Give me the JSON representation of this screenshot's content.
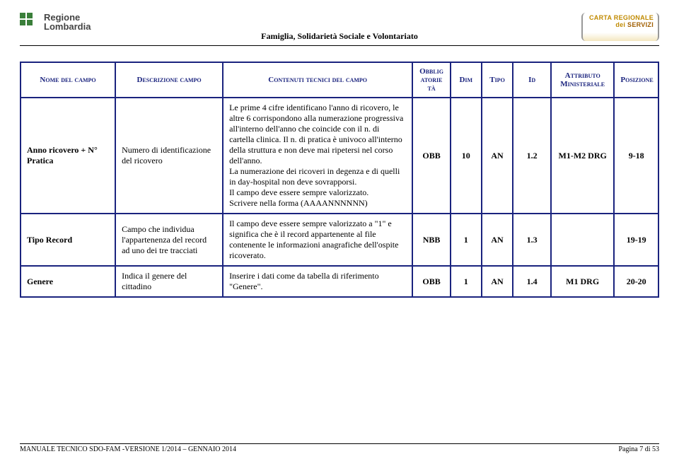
{
  "header": {
    "logo_line1": "Regione",
    "logo_line2": "Lombardia",
    "center_title": "Famiglia, Solidarietà Sociale e Volontariato",
    "card_line1": "CARTA REGIONALE",
    "card_line2": "dei",
    "card_line3": "SERVIZI"
  },
  "table": {
    "columns": [
      {
        "key": "nome",
        "label": "Nome del campo",
        "class": "col-nome"
      },
      {
        "key": "desc",
        "label": "Descrizione campo",
        "class": "col-desc"
      },
      {
        "key": "cont",
        "label": "Contenuti tecnici del campo",
        "class": "col-contenuti"
      },
      {
        "key": "obb",
        "label": "Obblig atorie tà",
        "class": "col-obb"
      },
      {
        "key": "dim",
        "label": "Dim",
        "class": "col-dim"
      },
      {
        "key": "tipo",
        "label": "Tipo",
        "class": "col-tipo"
      },
      {
        "key": "id",
        "label": "Id",
        "class": "col-id"
      },
      {
        "key": "attr",
        "label": "Attributo Ministeriale",
        "class": "col-attr"
      },
      {
        "key": "pos",
        "label": "Posizione",
        "class": "col-pos"
      }
    ],
    "rows": [
      {
        "nome": "Anno ricovero + N° Pratica",
        "desc": "Numero di identificazione del ricovero",
        "cont": "Le prime 4 cifre identificano l'anno di ricovero, le altre 6 corrispondono alla numerazione progressiva all'interno dell'anno che coincide con il n. di cartella clinica. Il n. di pratica è univoco all'interno della struttura e non deve mai ripetersi nel corso dell'anno.\nLa numerazione dei ricoveri in degenza e di quelli in day-hospital non deve sovrapporsi.\nIl campo deve essere sempre valorizzato.\nScrivere nella forma (AAAANNNNNN)",
        "obb": "OBB",
        "dim": "10",
        "tipo": "AN",
        "id": "1.2",
        "attr": "M1-M2 DRG",
        "pos": "9-18"
      },
      {
        "nome": "Tipo Record",
        "desc": "Campo che individua l'appartenenza del record ad uno dei tre tracciati",
        "cont": "Il campo deve essere sempre valorizzato a \"1\" e significa che è il record appartenente al file contenente le informazioni anagrafiche dell'ospite ricoverato.",
        "obb": "NBB",
        "dim": "1",
        "tipo": "AN",
        "id": "1.3",
        "attr": "",
        "pos": "19-19"
      },
      {
        "nome": "Genere",
        "desc": "Indica il  genere del cittadino",
        "cont": "Inserire i dati come da tabella di riferimento \"Genere\".",
        "obb": "OBB",
        "dim": "1",
        "tipo": "AN",
        "id": "1.4",
        "attr": "M1 DRG",
        "pos": "20-20"
      }
    ]
  },
  "footer": {
    "left": "MANUALE TECNICO SDO-FAM -VERSIONE 1/2014 – GENNAIO 2014",
    "right": "Pagina 7 di 53"
  },
  "style": {
    "border_color": "#1a237e",
    "header_text_color": "#1a237e",
    "page_bg": "#ffffff"
  }
}
